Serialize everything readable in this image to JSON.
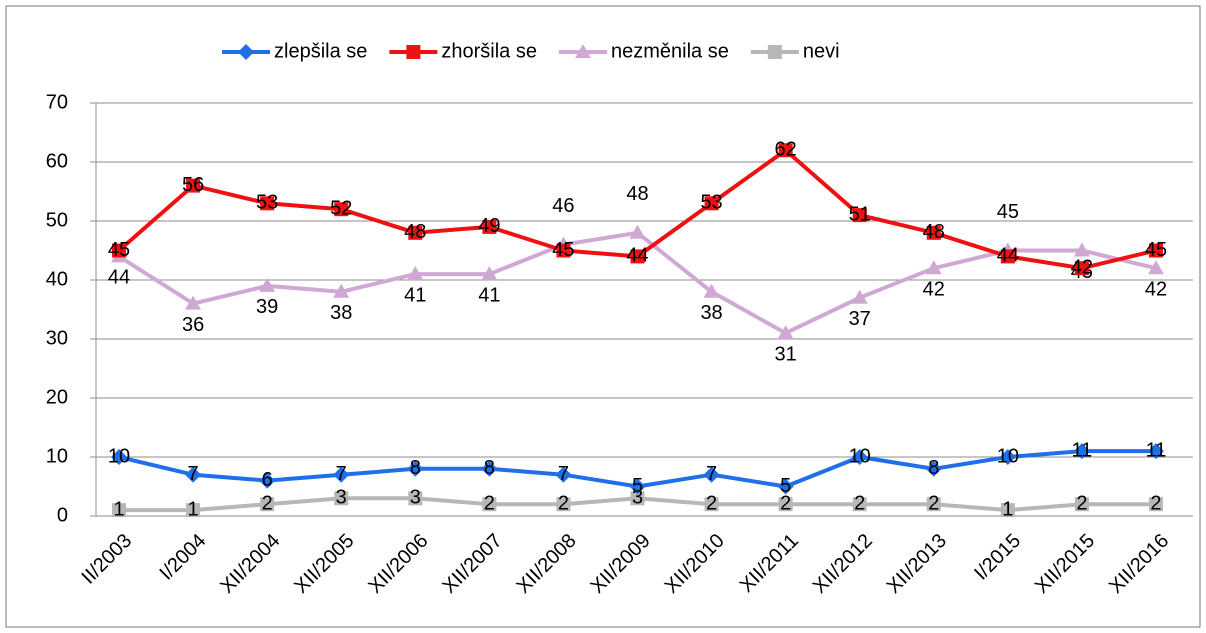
{
  "chart_data": {
    "type": "line",
    "categories": [
      "II/2003",
      "I/2004",
      "XII/2004",
      "XII/2005",
      "XII/2006",
      "XII/2007",
      "XII/2008",
      "XII/2009",
      "XII/2010",
      "XII/2011",
      "XII/2012",
      "XII/2013",
      "I/2015",
      "XII/2015",
      "XII/2016"
    ],
    "series": [
      {
        "name": "zlepšila se",
        "color": "#1f6fe8",
        "marker": "diamond",
        "values": [
          10,
          7,
          6,
          7,
          8,
          8,
          7,
          5,
          7,
          5,
          10,
          8,
          10,
          11,
          11
        ]
      },
      {
        "name": "zhoršila se",
        "color": "#ee1111",
        "marker": "square",
        "values": [
          45,
          56,
          53,
          52,
          48,
          49,
          45,
          44,
          53,
          62,
          51,
          48,
          44,
          42,
          45
        ]
      },
      {
        "name": "nezměnila se",
        "color": "#cfa9d4",
        "marker": "triangle",
        "values": [
          44,
          36,
          39,
          38,
          41,
          41,
          46,
          48,
          38,
          31,
          37,
          42,
          45,
          45,
          42
        ]
      },
      {
        "name": "nevi",
        "color": "#b7b7b7",
        "marker": "square",
        "values": [
          1,
          1,
          2,
          3,
          3,
          2,
          2,
          3,
          2,
          2,
          2,
          2,
          1,
          2,
          2
        ]
      }
    ],
    "ylim": [
      0,
      70
    ],
    "yticks": [
      0,
      10,
      20,
      30,
      40,
      50,
      60,
      70
    ],
    "grid": true,
    "legend": "top"
  }
}
